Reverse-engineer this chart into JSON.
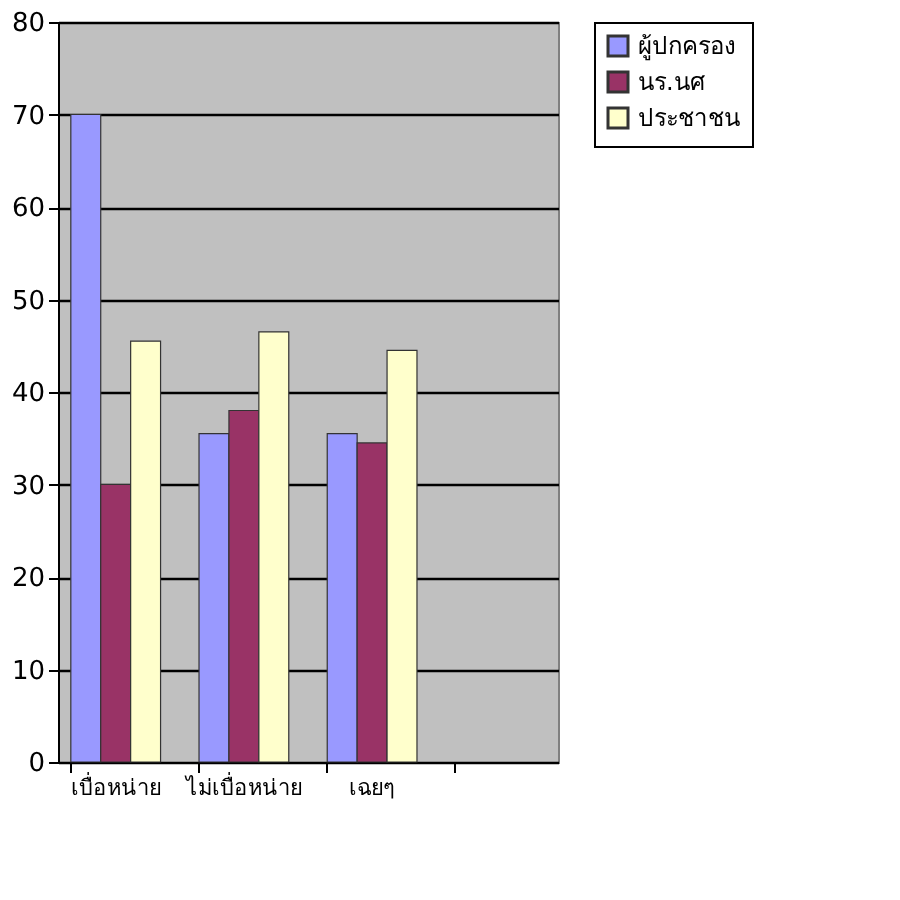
{
  "chart_data": {
    "type": "bar",
    "categories": [
      "เบื่อหน่าย",
      "ไม่เบื่อหน่าย",
      "เฉยๆ",
      null
    ],
    "series": [
      {
        "name": "ผู้ปกครอง",
        "color": "#9999ff",
        "values": [
          70,
          35.5,
          35.5,
          null
        ]
      },
      {
        "name": "นร.นศ",
        "color": "#993366",
        "values": [
          30,
          38,
          34.5,
          null
        ]
      },
      {
        "name": "ประชาชน",
        "color": "#ffffcc",
        "values": [
          45.5,
          46.5,
          44.5,
          null
        ]
      }
    ],
    "ylim": [
      0,
      80
    ],
    "yticks": [
      0,
      10,
      20,
      30,
      40,
      50,
      60,
      70,
      80
    ],
    "grid": "y",
    "legend": "right"
  }
}
